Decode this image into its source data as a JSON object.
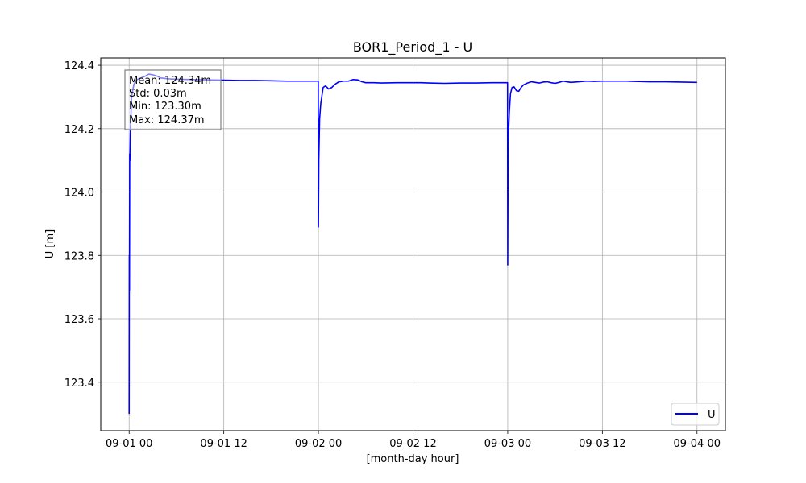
{
  "chart_data": {
    "type": "line",
    "title": "BOR1_Period_1 - U",
    "xlabel": "[month-day hour]",
    "ylabel": "U [m]",
    "x_ticks": [
      {
        "x": 0,
        "label": "09-01 00"
      },
      {
        "x": 12,
        "label": "09-01 12"
      },
      {
        "x": 24,
        "label": "09-02 00"
      },
      {
        "x": 36,
        "label": "09-02 12"
      },
      {
        "x": 48,
        "label": "09-03 00"
      },
      {
        "x": 60,
        "label": "09-03 12"
      },
      {
        "x": 72,
        "label": "09-04 00"
      }
    ],
    "y_ticks": [
      {
        "y": 123.4,
        "label": "123.4"
      },
      {
        "y": 123.6,
        "label": "123.6"
      },
      {
        "y": 123.8,
        "label": "123.8"
      },
      {
        "y": 124.0,
        "label": "124.0"
      },
      {
        "y": 124.2,
        "label": "124.2"
      },
      {
        "y": 124.4,
        "label": "124.4"
      }
    ],
    "xlim": [
      -3.6,
      75.6
    ],
    "ylim": [
      123.247,
      124.423
    ],
    "grid": true,
    "legend_position": "lower right",
    "series": [
      {
        "name": "U",
        "color": "#0000ff",
        "x_unit": "hours",
        "points": [
          [
            0.0,
            123.3
          ],
          [
            0.02,
            123.8
          ],
          [
            0.04,
            123.69
          ],
          [
            0.07,
            124.12
          ],
          [
            0.1,
            124.1
          ],
          [
            0.15,
            124.18
          ],
          [
            0.3,
            124.3
          ],
          [
            0.6,
            124.34
          ],
          [
            1.0,
            124.355
          ],
          [
            1.5,
            124.36
          ],
          [
            2.0,
            124.365
          ],
          [
            2.5,
            124.372
          ],
          [
            3.0,
            124.37
          ],
          [
            3.5,
            124.366
          ],
          [
            4.0,
            124.36
          ],
          [
            5.0,
            124.357
          ],
          [
            6.0,
            124.356
          ],
          [
            8.0,
            124.355
          ],
          [
            10.0,
            124.354
          ],
          [
            12.0,
            124.353
          ],
          [
            14.0,
            124.352
          ],
          [
            16.0,
            124.352
          ],
          [
            18.0,
            124.351
          ],
          [
            20.0,
            124.35
          ],
          [
            22.0,
            124.35
          ],
          [
            23.98,
            124.35
          ],
          [
            24.0,
            123.89
          ],
          [
            24.05,
            124.1
          ],
          [
            24.15,
            124.23
          ],
          [
            24.3,
            124.28
          ],
          [
            24.6,
            124.33
          ],
          [
            24.9,
            124.335
          ],
          [
            25.3,
            124.325
          ],
          [
            25.7,
            124.33
          ],
          [
            26.1,
            124.34
          ],
          [
            26.6,
            124.348
          ],
          [
            27.2,
            124.35
          ],
          [
            27.8,
            124.35
          ],
          [
            28.4,
            124.355
          ],
          [
            29.0,
            124.354
          ],
          [
            29.5,
            124.348
          ],
          [
            30.0,
            124.345
          ],
          [
            31.0,
            124.345
          ],
          [
            32.0,
            124.344
          ],
          [
            34.0,
            124.345
          ],
          [
            36.0,
            124.345
          ],
          [
            37.0,
            124.345
          ],
          [
            38.0,
            124.344
          ],
          [
            40.0,
            124.343
          ],
          [
            42.0,
            124.344
          ],
          [
            44.0,
            124.344
          ],
          [
            46.0,
            124.345
          ],
          [
            47.98,
            124.345
          ],
          [
            48.0,
            123.77
          ],
          [
            48.05,
            124.15
          ],
          [
            48.2,
            124.25
          ],
          [
            48.35,
            124.31
          ],
          [
            48.55,
            124.33
          ],
          [
            48.8,
            124.332
          ],
          [
            49.1,
            124.32
          ],
          [
            49.4,
            124.318
          ],
          [
            49.7,
            124.33
          ],
          [
            50.0,
            124.338
          ],
          [
            50.5,
            124.344
          ],
          [
            51.0,
            124.348
          ],
          [
            51.5,
            124.346
          ],
          [
            52.0,
            124.344
          ],
          [
            52.5,
            124.347
          ],
          [
            53.0,
            124.348
          ],
          [
            53.5,
            124.345
          ],
          [
            54.0,
            124.343
          ],
          [
            54.5,
            124.346
          ],
          [
            55.0,
            124.35
          ],
          [
            55.5,
            124.348
          ],
          [
            56.0,
            124.346
          ],
          [
            57.0,
            124.348
          ],
          [
            58.0,
            124.35
          ],
          [
            59.0,
            124.349
          ],
          [
            60.0,
            124.35
          ],
          [
            61.0,
            124.35
          ],
          [
            62.0,
            124.35
          ],
          [
            63.0,
            124.35
          ],
          [
            64.0,
            124.349
          ],
          [
            66.0,
            124.348
          ],
          [
            68.0,
            124.348
          ],
          [
            70.0,
            124.347
          ],
          [
            72.0,
            124.346
          ]
        ]
      }
    ],
    "stats_box": {
      "lines": [
        "Mean: 124.34m",
        "Std: 0.03m",
        "Min: 123.30m",
        "Max: 124.37m"
      ]
    }
  }
}
